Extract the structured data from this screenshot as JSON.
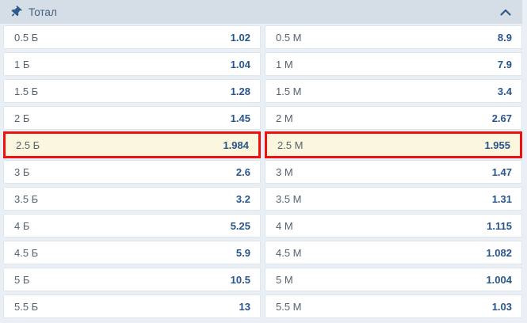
{
  "header": {
    "title": "Тотал",
    "pin_icon": "pin-icon",
    "collapse_icon": "chevron-up-icon",
    "collapsed": false
  },
  "market": {
    "columns": [
      "over",
      "under"
    ],
    "rows": [
      {
        "over_label": "0.5 Б",
        "over_value": "1.02",
        "under_label": "0.5 М",
        "under_value": "8.9",
        "highlighted": false
      },
      {
        "over_label": "1 Б",
        "over_value": "1.04",
        "under_label": "1 М",
        "under_value": "7.9",
        "highlighted": false
      },
      {
        "over_label": "1.5 Б",
        "over_value": "1.28",
        "under_label": "1.5 М",
        "under_value": "3.4",
        "highlighted": false
      },
      {
        "over_label": "2 Б",
        "over_value": "1.45",
        "under_label": "2 М",
        "under_value": "2.67",
        "highlighted": false
      },
      {
        "over_label": "2.5 Б",
        "over_value": "1.984",
        "under_label": "2.5 М",
        "under_value": "1.955",
        "highlighted": true
      },
      {
        "over_label": "3 Б",
        "over_value": "2.6",
        "under_label": "3 М",
        "under_value": "1.47",
        "highlighted": false
      },
      {
        "over_label": "3.5 Б",
        "over_value": "3.2",
        "under_label": "3.5 М",
        "under_value": "1.31",
        "highlighted": false
      },
      {
        "over_label": "4 Б",
        "over_value": "5.25",
        "under_label": "4 М",
        "under_value": "1.115",
        "highlighted": false
      },
      {
        "over_label": "4.5 Б",
        "over_value": "5.9",
        "under_label": "4.5 М",
        "under_value": "1.082",
        "highlighted": false
      },
      {
        "over_label": "5 Б",
        "over_value": "10.5",
        "under_label": "5 М",
        "under_value": "1.004",
        "highlighted": false
      },
      {
        "over_label": "5.5 Б",
        "over_value": "13",
        "under_label": "5.5 М",
        "under_value": "1.03",
        "highlighted": false
      }
    ]
  },
  "colors": {
    "page_bg": "#e9eff5",
    "header_bg": "#d5dee7",
    "header_text": "#44617e",
    "icon_color": "#2e598c",
    "label_text": "#57626d",
    "value_text": "#29558c",
    "highlight_bg": "#fbf6de",
    "accent_red": "#ee1111"
  }
}
